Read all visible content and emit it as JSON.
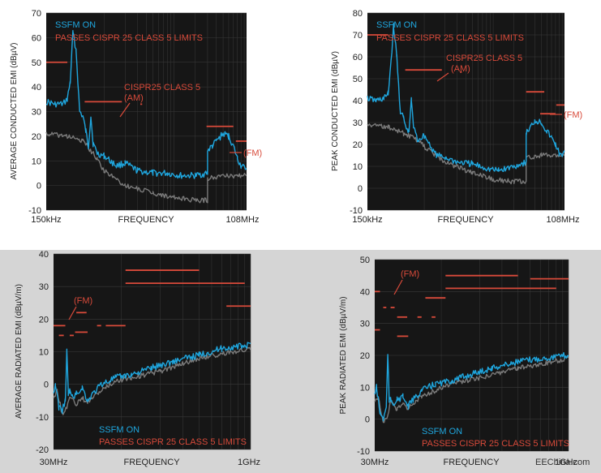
{
  "colors": {
    "plot_bg": "#161616",
    "grid": "#3a3a3a",
    "ssfm_on": "#1fa6de",
    "ssfm_off": "#7a7a7a",
    "limit": "#d84a3a",
    "bottom_panel_bg": "#d5d5d5"
  },
  "watermark": "EEChina.com",
  "chart_data": [
    {
      "type": "line",
      "ylabel": "AVERAGE CONDUCTED EMI (dBµV)",
      "xlabel": "FREQUENCY",
      "x_tick_labels": [
        "150kHz",
        "108MHz"
      ],
      "x_scale": "log",
      "xlim": [
        0.15,
        108
      ],
      "ylim": [
        -10,
        70
      ],
      "y_ticks": [
        -10,
        0,
        10,
        20,
        30,
        40,
        50,
        60,
        70
      ],
      "grid": true,
      "legend_text": [
        "SSFM ON",
        "PASSES CISPR 25 CLASS 5 LIMITS"
      ],
      "legend_position": "top-left",
      "annotations": [
        {
          "text": "CISPR25 CLASS 5",
          "text2": "(AM)"
        },
        {
          "text": "(FM)"
        }
      ],
      "series": [
        {
          "x": [
            0.15,
            0.2,
            0.26,
            0.3,
            0.33,
            0.36,
            0.4,
            0.45,
            0.5,
            0.55,
            0.6,
            0.65,
            0.7,
            0.8,
            1,
            1.5,
            2,
            3,
            5,
            8,
            12,
            20,
            30,
            30,
            35,
            40,
            50,
            60,
            70,
            80,
            90,
            100,
            108
          ],
          "values": [
            34,
            33,
            33,
            35,
            42,
            62,
            55,
            30,
            28,
            22,
            16,
            28,
            17,
            13,
            12,
            8,
            9,
            6,
            5,
            5,
            4,
            4,
            5,
            14,
            16,
            18,
            21,
            20,
            16,
            11,
            8,
            7,
            7
          ]
        },
        {
          "x": [
            0.15,
            0.3,
            0.5,
            0.8,
            1,
            2,
            5,
            10,
            20,
            30,
            30,
            50,
            80,
            108
          ],
          "values": [
            21,
            20,
            18,
            11,
            6,
            0,
            -3,
            -5,
            -6,
            -6,
            3,
            4,
            4,
            4
          ]
        }
      ],
      "limit_lines": [
        {
          "x": [
            0.15,
            0.3
          ],
          "y": 50
        },
        {
          "x": 0.53,
          "x2": 1.8,
          "y": 34
        },
        {
          "x": 3.3,
          "x2": 3.5,
          "y": 33
        },
        {
          "x": 29,
          "x2": 70,
          "y": 24
        },
        {
          "x": 76,
          "x2": 108,
          "y": 18
        }
      ]
    },
    {
      "type": "line",
      "ylabel": "PEAK CONDUCTED EMI (dBµV)",
      "xlabel": "FREQUENCY",
      "x_tick_labels": [
        "150kHz",
        "108MHz"
      ],
      "x_scale": "log",
      "xlim": [
        0.15,
        108
      ],
      "ylim": [
        -10,
        80
      ],
      "y_ticks": [
        -10,
        0,
        10,
        20,
        30,
        40,
        50,
        60,
        70,
        80
      ],
      "grid": true,
      "legend_text": [
        "SSFM ON",
        "PASSES CISPR 25 CLASS 5 LIMITS"
      ],
      "legend_position": "top-left",
      "annotations": [
        {
          "text": "CISPR25 CLASS 5",
          "text2": "(AM)"
        },
        {
          "text": "(FM)"
        }
      ],
      "series": [
        {
          "x": [
            0.15,
            0.2,
            0.26,
            0.3,
            0.33,
            0.36,
            0.4,
            0.45,
            0.5,
            0.55,
            0.6,
            0.65,
            0.7,
            0.8,
            1,
            1.5,
            2,
            3,
            5,
            8,
            12,
            20,
            30,
            30,
            35,
            40,
            50,
            60,
            70,
            80,
            90,
            100,
            108
          ],
          "values": [
            41,
            40,
            41,
            43,
            58,
            74,
            60,
            35,
            32,
            27,
            26,
            40,
            28,
            22,
            24,
            15,
            14,
            12,
            11,
            9,
            8,
            10,
            12,
            25,
            28,
            31,
            30,
            26,
            23,
            20,
            16,
            14,
            16
          ]
        },
        {
          "x": [
            0.15,
            0.3,
            0.5,
            0.8,
            1,
            2,
            5,
            10,
            20,
            30,
            30,
            50,
            80,
            108
          ],
          "values": [
            29,
            28,
            25,
            22,
            19,
            12,
            7,
            4,
            3,
            3,
            14,
            15,
            15,
            15
          ]
        }
      ],
      "limit_lines": [
        {
          "x": [
            0.15,
            0.3
          ],
          "y": 70
        },
        {
          "x": 0.53,
          "x2": 1.8,
          "y": 54
        },
        {
          "x": 3.3,
          "x2": 3.5,
          "y": 53
        },
        {
          "x": 30,
          "x2": 55,
          "y": 44
        },
        {
          "x": 48,
          "x2": 80,
          "y": 34
        },
        {
          "x": 82,
          "x2": 108,
          "y": 38
        }
      ]
    },
    {
      "type": "line",
      "ylabel": "AVERAGE RADIATED EMI (dBµV/m)",
      "xlabel": "FREQUENCY",
      "x_tick_labels": [
        "30MHz",
        "1GHz"
      ],
      "x_scale": "log",
      "xlim": [
        30,
        1000
      ],
      "ylim": [
        -20,
        40
      ],
      "y_ticks": [
        -20,
        -10,
        0,
        10,
        20,
        30,
        40
      ],
      "grid": true,
      "legend_text": [
        "SSFM ON",
        "PASSES CISPR 25 CLASS 5 LIMITS"
      ],
      "legend_position": "bottom-left",
      "annotations": [
        {
          "text": "(FM)"
        }
      ],
      "series": [
        {
          "x": [
            30,
            31,
            33,
            35,
            37,
            38,
            39,
            40,
            42,
            45,
            50,
            55,
            60,
            70,
            90,
            120,
            170,
            250,
            400,
            600,
            1000
          ],
          "values": [
            -3,
            0,
            -7,
            -8,
            -5,
            10,
            -3,
            -2,
            -4,
            -3,
            -1,
            -5,
            -3,
            0,
            2,
            3,
            5,
            7,
            9,
            11,
            12
          ]
        },
        {
          "x": [
            30,
            32,
            35,
            38,
            40,
            45,
            50,
            55,
            60,
            70,
            90,
            120,
            200,
            400,
            1000
          ],
          "values": [
            -4,
            -2,
            -9,
            -7,
            -4,
            -6,
            -4,
            -6,
            -4,
            -2,
            1,
            2,
            4,
            8,
            11
          ]
        }
      ],
      "limit_lines": [
        {
          "x": 30,
          "x2": 37,
          "y": 18
        },
        {
          "x": 33,
          "x2": 36,
          "y": 15
        },
        {
          "x": 40,
          "x2": 43,
          "y": 15
        },
        {
          "x": 45,
          "x2": 54,
          "y": 22
        },
        {
          "x": 44,
          "x2": 55,
          "y": 16
        },
        {
          "x": 65,
          "x2": 70,
          "y": 18
        },
        {
          "x": 76,
          "x2": 108,
          "y": 18
        },
        {
          "x": 108,
          "x2": 400,
          "y": 35
        },
        {
          "x": 108,
          "x2": 900,
          "y": 31
        },
        {
          "x": 650,
          "x2": 1000,
          "y": 24
        }
      ]
    },
    {
      "type": "line",
      "ylabel": "PEAK RADIATED EMI (dBµV/m)",
      "xlabel": "FREQUENCY",
      "x_tick_labels": [
        "30MHz",
        "1GHz"
      ],
      "x_scale": "log",
      "xlim": [
        30,
        1000
      ],
      "ylim": [
        -10,
        50
      ],
      "y_ticks": [
        -10,
        0,
        10,
        20,
        30,
        40,
        50
      ],
      "grid": true,
      "legend_text": [
        "SSFM ON",
        "PASSES CISPR 25 CLASS 5 LIMITS"
      ],
      "legend_position": "bottom-left",
      "annotations": [
        {
          "text": "(FM)"
        }
      ],
      "series": [
        {
          "x": [
            30,
            31,
            33,
            35,
            37,
            38,
            39,
            40,
            42,
            45,
            50,
            55,
            60,
            70,
            90,
            120,
            170,
            250,
            400,
            600,
            1000
          ],
          "values": [
            8,
            10,
            2,
            0,
            4,
            20,
            6,
            6,
            5,
            6,
            7,
            4,
            6,
            9,
            11,
            12,
            14,
            16,
            18,
            19,
            20
          ]
        },
        {
          "x": [
            30,
            32,
            35,
            38,
            40,
            45,
            50,
            55,
            60,
            70,
            90,
            120,
            200,
            400,
            1000
          ],
          "values": [
            6,
            7,
            -1,
            1,
            6,
            3,
            5,
            3,
            5,
            7,
            9,
            11,
            13,
            16,
            19
          ]
        }
      ],
      "limit_lines": [
        {
          "x": 30,
          "x2": 33,
          "y": 40
        },
        {
          "x": 30,
          "x2": 33,
          "y": 28
        },
        {
          "x": 35,
          "x2": 37,
          "y": 35
        },
        {
          "x": 40,
          "x2": 43,
          "y": 35
        },
        {
          "x": 45,
          "x2": 54,
          "y": 32
        },
        {
          "x": 45,
          "x2": 55,
          "y": 26
        },
        {
          "x": 65,
          "x2": 70,
          "y": 32
        },
        {
          "x": 75,
          "x2": 108,
          "y": 38
        },
        {
          "x": 84,
          "x2": 90,
          "y": 32
        },
        {
          "x": 108,
          "x2": 400,
          "y": 45
        },
        {
          "x": 108,
          "x2": 800,
          "y": 41
        },
        {
          "x": 500,
          "x2": 1000,
          "y": 44
        }
      ]
    }
  ]
}
